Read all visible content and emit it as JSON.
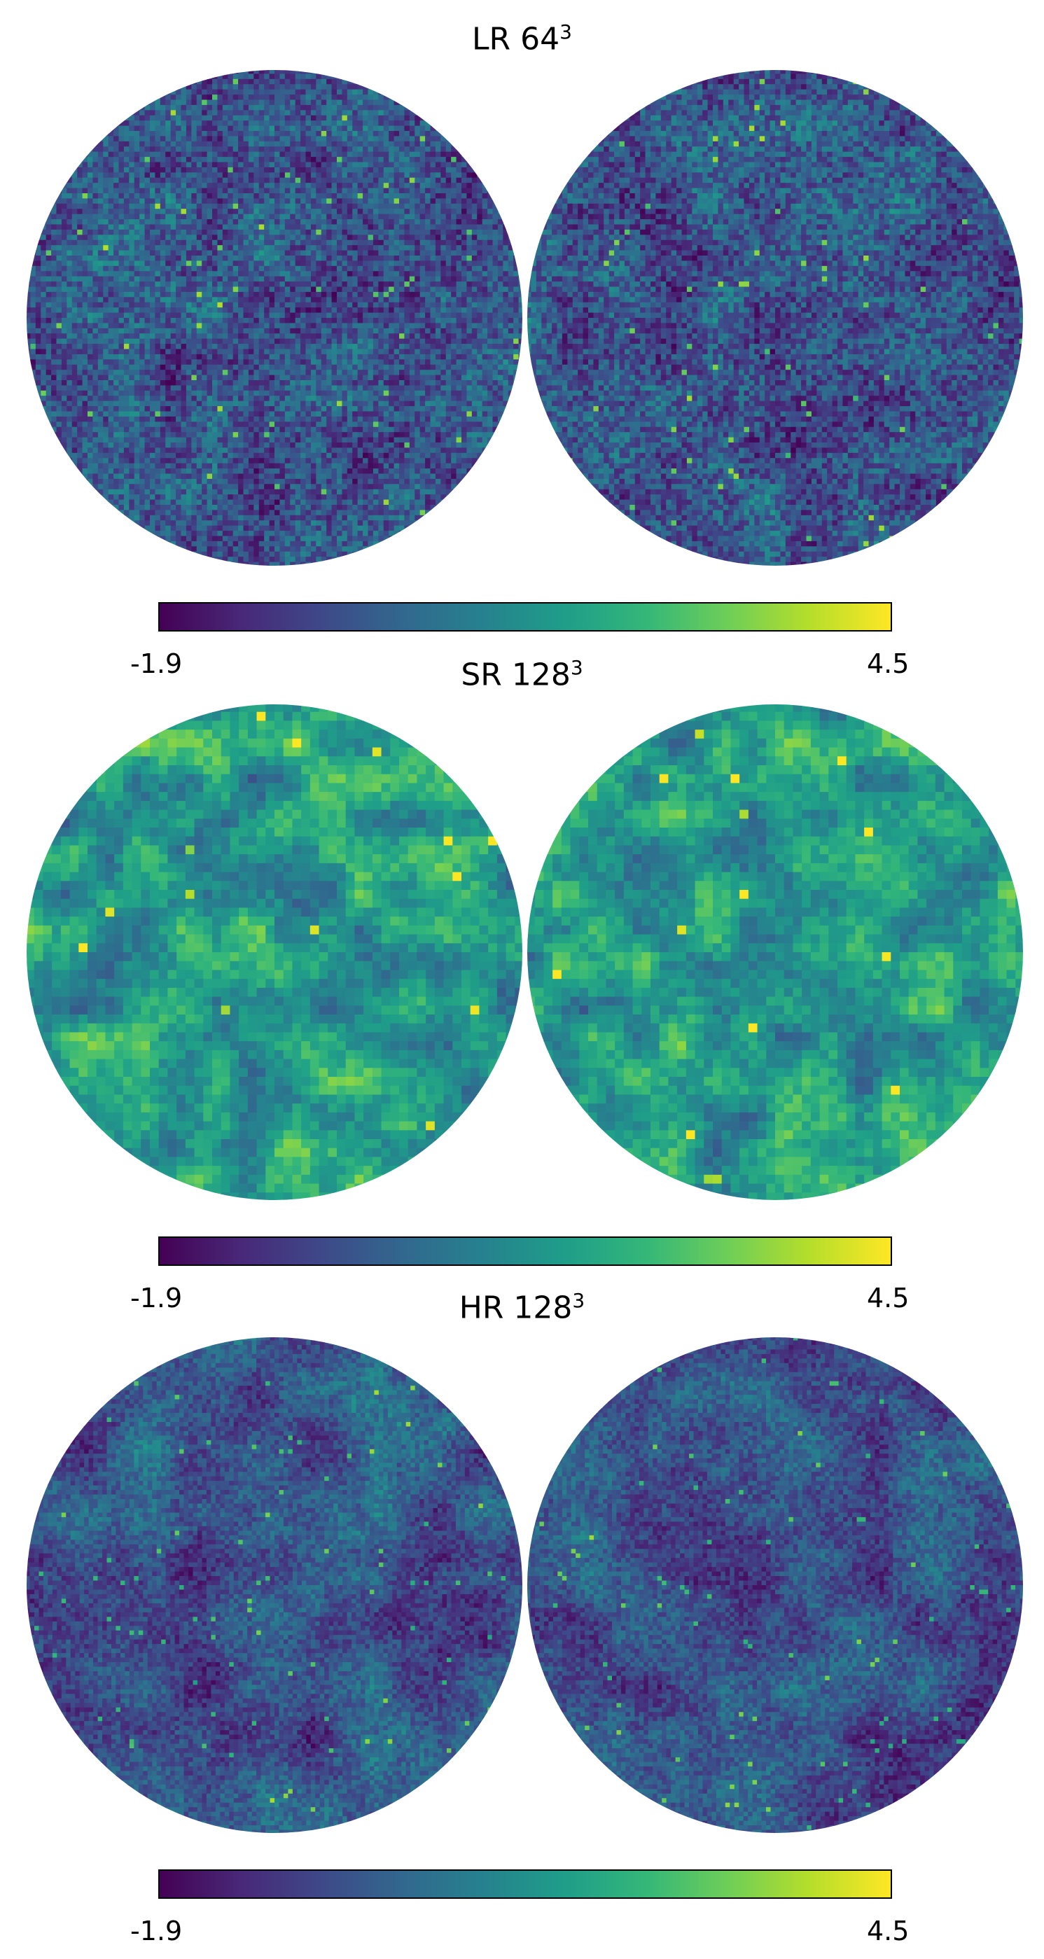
{
  "colormap": "viridis",
  "colors": [
    "#440154",
    "#482878",
    "#3e4989",
    "#31688e",
    "#26828e",
    "#1f9e89",
    "#35b779",
    "#6ece58",
    "#b5de2b",
    "#fde725"
  ],
  "chart_data": [
    {
      "type": "heatmap",
      "projection": "orthographic (two hemispheres)",
      "title_main": "LR 64",
      "title_sup": "3",
      "colorbar": {
        "min_label": "-1.9",
        "max_label": "4.5",
        "vmin": -1.9,
        "vmax": 4.5
      }
    },
    {
      "type": "heatmap",
      "projection": "orthographic (two hemispheres)",
      "title_main": "SR 128",
      "title_sup": "3",
      "colorbar": {
        "min_label": "-1.9",
        "max_label": "4.5",
        "vmin": -1.9,
        "vmax": 4.5
      }
    },
    {
      "type": "heatmap",
      "projection": "orthographic (two hemispheres)",
      "title_main": "HR 128",
      "title_sup": "3",
      "colorbar": {
        "min_label": "-1.9",
        "max_label": "4.5",
        "vmin": -1.9,
        "vmax": 4.5
      }
    }
  ]
}
